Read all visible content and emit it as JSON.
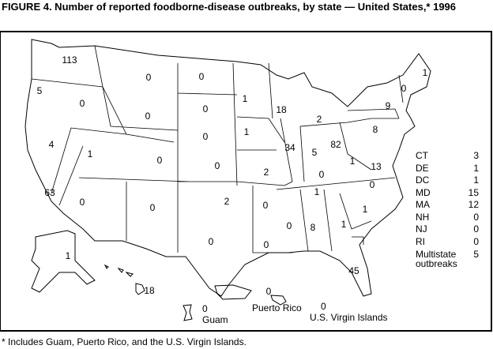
{
  "title": "FIGURE 4. Number of reported foodborne-disease outbreaks, by state — United States,* 1996",
  "footnote": "* Includes Guam, Puerto Rico, and the U.S. Virgin Islands.",
  "states": {
    "WA": "113",
    "OR": "5",
    "ID": "0",
    "MT": "0",
    "WY": "0",
    "NV": "4",
    "UT": "1",
    "CO": "0",
    "CA": "63",
    "AZ": "0",
    "NM": "0",
    "ND": "0",
    "SD": "0",
    "NE": "0",
    "KS": "0",
    "OK": "2",
    "TX": "0",
    "MN": "1",
    "IA": "1",
    "MO": "2",
    "AR": "0",
    "LA": "0",
    "WI": "18",
    "IL": "34",
    "MI": "2",
    "IN": "5",
    "OH": "82",
    "KY": "0",
    "TN": "1",
    "MS": "0",
    "AL": "8",
    "GA": "1",
    "FL": "45",
    "SC": "1",
    "NC": "0",
    "VA": "13",
    "WV": "1",
    "PA": "8",
    "NY": "9",
    "VT": "0",
    "ME": "1",
    "AK": "1",
    "HI": "18"
  },
  "territories": {
    "puerto_rico": {
      "name": "Puerto Rico",
      "value": "0"
    },
    "virgin_islands": {
      "name": "U.S. Virgin Islands",
      "value": "0"
    },
    "guam": {
      "name": "Guam",
      "value": "0"
    }
  },
  "legend": [
    {
      "state": "CT",
      "value": "3"
    },
    {
      "state": "DE",
      "value": "1"
    },
    {
      "state": "DC",
      "value": "1"
    },
    {
      "state": "MD",
      "value": "15"
    },
    {
      "state": "MA",
      "value": "12"
    },
    {
      "state": "NH",
      "value": "0"
    },
    {
      "state": "NJ",
      "value": "0"
    },
    {
      "state": "RI",
      "value": "0"
    }
  ],
  "multistate": {
    "label": "Multistate outbreaks",
    "value": "5"
  }
}
